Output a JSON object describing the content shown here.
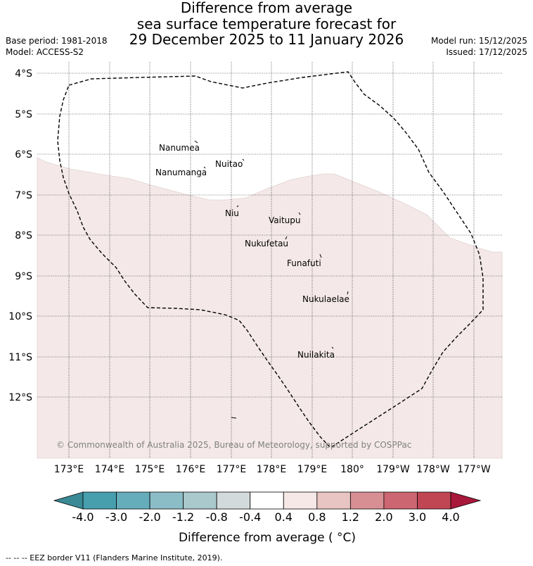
{
  "title": {
    "line1": "Difference from average",
    "line2": "sea surface temperature forecast for",
    "line3": "29 December 2025 to 11 January 2026"
  },
  "meta": {
    "base_period": "Base period: 1981-2018",
    "model": "Model: ACCESS-S2",
    "model_run": "Model run: 15/12/2025",
    "issued": "Issued: 17/12/2025"
  },
  "map": {
    "lat_labels": [
      "4°S",
      "5°S",
      "6°S",
      "7°S",
      "8°S",
      "9°S",
      "10°S",
      "11°S",
      "12°S"
    ],
    "lon_labels": [
      "173°E",
      "174°E",
      "175°E",
      "176°E",
      "177°E",
      "178°E",
      "179°E",
      "180°",
      "179°W",
      "178°W",
      "177°W"
    ],
    "places": [
      "Nanumea",
      "Nuitao",
      "Nanumanga",
      "Niu",
      "Vaitupu",
      "Nukufetau",
      "Funafuti",
      "Nukulaelae",
      "Nuilakita"
    ],
    "copyright": "© Commonwealth of Australia 2025, Bureau of Meteorology, supported by COSPPac",
    "colors": {
      "anomaly_0_4_0_8": "#f4e9e8",
      "border": "#000000"
    }
  },
  "colorbar": {
    "ticks": [
      "-4.0",
      "-3.0",
      "-2.0",
      "-1.2",
      "-0.8",
      "-0.4",
      "0.4",
      "0.8",
      "1.2",
      "2.0",
      "3.0",
      "4.0"
    ],
    "colors": [
      "#3a8a96",
      "#479fae",
      "#66adbc",
      "#8bbdc7",
      "#a9c9cd",
      "#d3dadb",
      "#ffffff",
      "#f5e8e7",
      "#e8c5c2",
      "#d88f94",
      "#cc6670",
      "#c14654",
      "#a8183a"
    ],
    "label": "Difference from average ( °C)"
  },
  "footer": "--  --  -- EEZ border V11 (Flanders Marine Institute, 2019)."
}
